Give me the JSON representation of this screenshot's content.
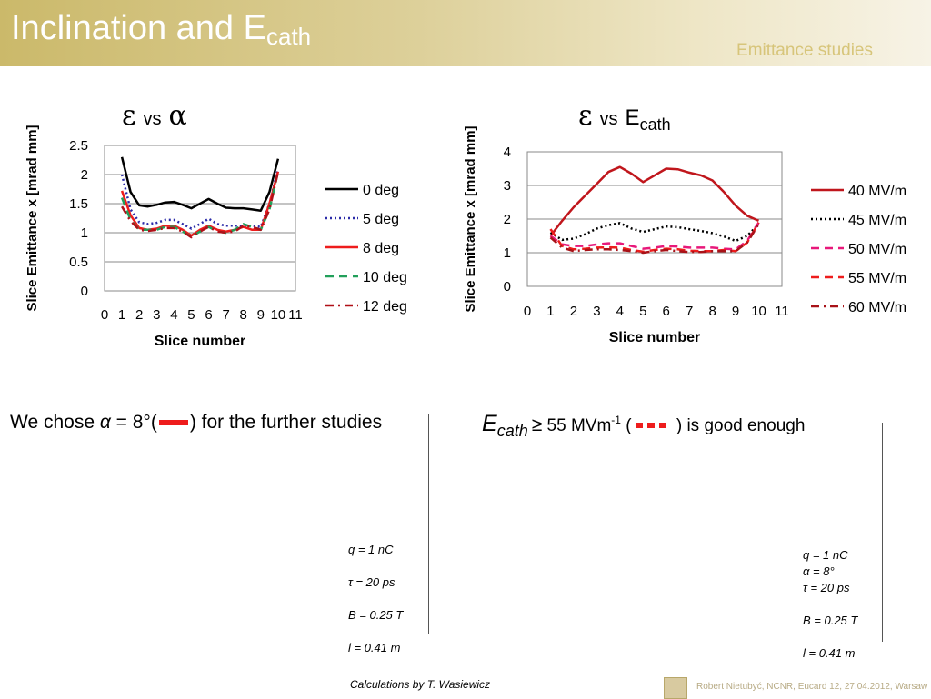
{
  "header": {
    "title_main": "Inclination and E",
    "title_sub": "cath",
    "section": "Emittance studies"
  },
  "left_title": {
    "symbol1": "ε",
    "vs": "vs",
    "symbol2": "α"
  },
  "right_title": {
    "symbol1": "ε",
    "vs": "vs",
    "e_main": "E",
    "e_sub": "cath"
  },
  "chart_data": [
    {
      "type": "line",
      "ylabel": "Slice Emittance x [mrad mm]",
      "xlabel": "Slice number",
      "ylim": [
        0,
        2.5
      ],
      "yticks": [
        "0",
        "0.5",
        "1",
        "1.5",
        "2",
        "2.5"
      ],
      "xticks": [
        "0",
        "1",
        "2",
        "3",
        "4",
        "5",
        "6",
        "7",
        "8",
        "9",
        "10",
        "11"
      ],
      "xlim": [
        0,
        11
      ],
      "grid": true,
      "legend": "right",
      "x": [
        1,
        1.5,
        2,
        2.5,
        3,
        3.5,
        4,
        4.5,
        5,
        5.5,
        6,
        6.5,
        7,
        7.5,
        8,
        8.5,
        9,
        9.5,
        10
      ],
      "series": [
        {
          "name": "0 deg",
          "color": "#000000",
          "dash": "solid",
          "values": [
            2.3,
            1.7,
            1.47,
            1.45,
            1.48,
            1.52,
            1.53,
            1.48,
            1.42,
            1.5,
            1.58,
            1.5,
            1.43,
            1.42,
            1.42,
            1.4,
            1.38,
            1.7,
            2.27
          ]
        },
        {
          "name": "5 deg",
          "color": "#2b2ba8",
          "dash": "dot",
          "values": [
            2.0,
            1.4,
            1.18,
            1.15,
            1.17,
            1.22,
            1.22,
            1.15,
            1.07,
            1.15,
            1.24,
            1.15,
            1.12,
            1.12,
            1.12,
            1.12,
            1.1,
            1.5,
            2.1
          ]
        },
        {
          "name": "8 deg",
          "color": "#ee1c1c",
          "dash": "solid",
          "values": [
            1.72,
            1.3,
            1.08,
            1.05,
            1.07,
            1.12,
            1.12,
            1.05,
            0.95,
            1.05,
            1.12,
            1.05,
            1.02,
            1.05,
            1.1,
            1.05,
            1.05,
            1.5,
            2.05
          ]
        },
        {
          "name": "10 deg",
          "color": "#22a05a",
          "dash": "dash",
          "values": [
            1.6,
            1.22,
            1.05,
            1.05,
            1.05,
            1.1,
            1.1,
            1.02,
            0.93,
            1.02,
            1.1,
            1.02,
            1.0,
            1.05,
            1.15,
            1.1,
            1.05,
            1.4,
            2.05
          ]
        },
        {
          "name": "12 deg",
          "color": "#b01018",
          "dash": "dashdot",
          "values": [
            1.45,
            1.2,
            1.05,
            1.03,
            1.05,
            1.08,
            1.08,
            1.02,
            0.92,
            1.02,
            1.1,
            1.02,
            1.0,
            1.02,
            1.12,
            1.1,
            1.05,
            1.4,
            2.05
          ]
        }
      ]
    },
    {
      "type": "line",
      "ylabel": "Slice Emittance x [mrad mm]",
      "xlabel": "Slice number",
      "ylim": [
        0,
        4
      ],
      "yticks": [
        "0",
        "1",
        "2",
        "3",
        "4"
      ],
      "xticks": [
        "0",
        "1",
        "2",
        "3",
        "4",
        "5",
        "6",
        "7",
        "8",
        "9",
        "10",
        "11"
      ],
      "xlim": [
        0,
        11
      ],
      "grid": true,
      "legend": "right",
      "x": [
        1,
        1.5,
        2,
        2.5,
        3,
        3.5,
        4,
        4.5,
        5,
        5.5,
        6,
        6.5,
        7,
        7.5,
        8,
        8.5,
        9,
        9.5,
        10
      ],
      "series": [
        {
          "name": "40 MV/m",
          "color": "#c0161c",
          "dash": "solid",
          "values": [
            1.5,
            1.95,
            2.35,
            2.7,
            3.05,
            3.4,
            3.55,
            3.35,
            3.1,
            3.3,
            3.5,
            3.48,
            3.38,
            3.3,
            3.15,
            2.8,
            2.4,
            2.1,
            1.95
          ]
        },
        {
          "name": "45 MV/m",
          "color": "#000000",
          "dash": "dot",
          "values": [
            1.6,
            1.38,
            1.42,
            1.55,
            1.72,
            1.82,
            1.88,
            1.72,
            1.62,
            1.7,
            1.78,
            1.76,
            1.7,
            1.65,
            1.58,
            1.48,
            1.35,
            1.5,
            1.85
          ]
        },
        {
          "name": "50 MV/m",
          "color": "#e8187a",
          "dash": "dash",
          "values": [
            1.5,
            1.25,
            1.2,
            1.2,
            1.25,
            1.28,
            1.28,
            1.2,
            1.12,
            1.15,
            1.2,
            1.18,
            1.15,
            1.15,
            1.15,
            1.12,
            1.1,
            1.35,
            1.9
          ]
        },
        {
          "name": "55 MV/m",
          "color": "#ee1c1c",
          "dash": "dash",
          "values": [
            1.7,
            1.2,
            1.1,
            1.12,
            1.15,
            1.16,
            1.15,
            1.08,
            1.03,
            1.08,
            1.12,
            1.1,
            1.06,
            1.05,
            1.05,
            1.08,
            1.05,
            1.3,
            1.9
          ]
        },
        {
          "name": "60 MV/m",
          "color": "#a81218",
          "dash": "dashdot",
          "values": [
            1.45,
            1.15,
            1.05,
            1.08,
            1.1,
            1.1,
            1.08,
            1.05,
            1.0,
            1.05,
            1.08,
            1.05,
            1.02,
            1.02,
            1.05,
            1.05,
            1.05,
            1.3,
            1.85
          ]
        }
      ]
    }
  ],
  "left_statement": {
    "text1": "We chose ",
    "alpha": "α",
    "text2": " = 8°(",
    "text3": ") for the further studies"
  },
  "right_statement": {
    "e_main": "E",
    "e_sub": "cath",
    "geq": "≥",
    "text1": " 55 MVm",
    "sup": "-1",
    "text2": " (",
    "text3": " ) is good enough"
  },
  "left_params": [
    "q = 1 nC",
    "τ = 20 ps",
    "B = 0.25 T",
    "l = 0.41 m"
  ],
  "right_params": {
    "q": "q = 1 nC",
    "alpha": "α = 8°",
    "tau": "τ = 20 ps",
    "B": "B = 0.25 T",
    "l": "l = 0.41 m"
  },
  "credit": "Calculations by T. Wasiewicz",
  "footer": "Robert Nietubyć, NCNR,  Eucard 12, 27.04.2012, Warsaw"
}
